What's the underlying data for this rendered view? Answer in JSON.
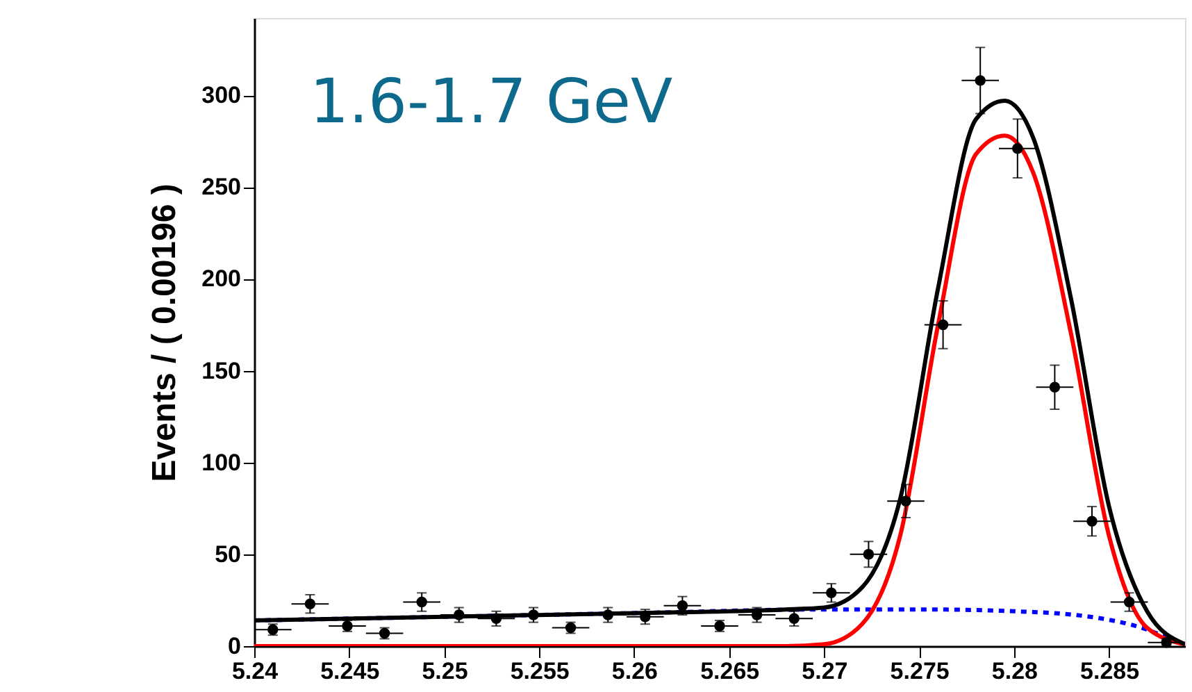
{
  "chart_data": {
    "type": "scatter",
    "ylabel": "Events / ( 0.00196 )",
    "annotations": [
      "1.6-1.7 GeV"
    ],
    "xlim": [
      5.24,
      5.289
    ],
    "xticks": [
      {
        "value": 5.24,
        "label": "5.24"
      },
      5.245,
      {
        "value": 5.25,
        "label": "5.25"
      },
      5.255,
      {
        "value": 5.26,
        "label": "5.26"
      },
      5.265,
      {
        "value": 5.27,
        "label": "5.27"
      },
      5.275,
      {
        "value": 5.28,
        "label": "5.28"
      },
      5.285
    ],
    "ylim": [
      0,
      342
    ],
    "yticks": [
      0,
      50,
      100,
      150,
      200,
      250,
      300
    ],
    "series": [
      {
        "color": "#000000",
        "marker": "circle",
        "x": [
          5.24098,
          5.24294,
          5.2449,
          5.24686,
          5.24882,
          5.25078,
          5.25274,
          5.2547,
          5.25666,
          5.25862,
          5.26058,
          5.26254,
          5.2645,
          5.26646,
          5.26842,
          5.27038,
          5.27234,
          5.2743,
          5.27626,
          5.27822,
          5.28018,
          5.28214,
          5.2841,
          5.28606,
          5.28802
        ],
        "values": [
          9,
          23,
          11,
          7,
          24,
          17,
          15,
          17,
          10,
          17,
          16,
          22,
          11,
          17,
          15,
          29,
          50,
          79,
          175,
          308,
          271,
          141,
          68,
          24,
          2
        ],
        "errors": [
          3,
          5,
          3,
          3,
          5,
          4,
          4,
          4,
          3,
          4,
          4,
          5,
          3,
          4,
          4,
          5,
          7,
          9,
          13,
          18,
          16,
          12,
          8,
          5,
          2
        ],
        "xerrors": [
          0.00098,
          0.00098,
          0.00098,
          0.00098,
          0.00098,
          0.00098,
          0.00098,
          0.00098,
          0.00098,
          0.00098,
          0.00098,
          0.00098,
          0.00098,
          0.00098,
          0.00098,
          0.00098,
          0.00098,
          0.00098,
          0.00098,
          0.00098,
          0.00098,
          0.00098,
          0.00098,
          0.00098,
          0.00098
        ]
      },
      {
        "type": "line",
        "color": "#0000ff",
        "line_style": "dotted",
        "x": [
          5.24,
          5.25,
          5.26,
          5.27,
          5.275,
          5.28,
          5.284,
          5.287,
          5.289
        ],
        "values": [
          14,
          16,
          18,
          20,
          20,
          19,
          16,
          9,
          0
        ]
      },
      {
        "type": "line",
        "color": "#ff0000",
        "line_style": "solid",
        "x": [
          5.24,
          5.268,
          5.27,
          5.272,
          5.274,
          5.276,
          5.278,
          5.2795,
          5.281,
          5.283,
          5.285,
          5.287,
          5.289
        ],
        "values": [
          0,
          0,
          1,
          12,
          60,
          175,
          268,
          278,
          258,
          170,
          60,
          10,
          1
        ]
      },
      {
        "type": "line",
        "color": "#000000",
        "line_style": "solid",
        "x": [
          5.24,
          5.25,
          5.26,
          5.268,
          5.27,
          5.272,
          5.274,
          5.276,
          5.278,
          5.2795,
          5.281,
          5.283,
          5.285,
          5.287,
          5.289
        ],
        "values": [
          14,
          16,
          18,
          20,
          21,
          32,
          80,
          195,
          287,
          297,
          277,
          189,
          76,
          19,
          1
        ]
      }
    ]
  }
}
